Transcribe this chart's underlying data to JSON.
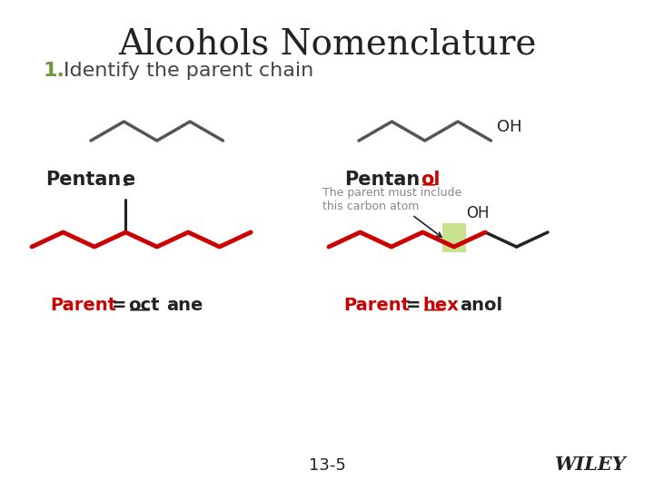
{
  "title": "Alcohols Nomenclature",
  "title_fontsize": 28,
  "title_color": "#222222",
  "subtitle_number": "1.",
  "subtitle_number_color": "#6a9a3a",
  "subtitle_fontsize": 16,
  "subtitle_color": "#444444",
  "bg_color": "#ffffff",
  "page_number": "13-5",
  "wiley_text": "WILEY",
  "red_color": "#cc0000",
  "dark_color": "#222222",
  "gray_color": "#888888",
  "green_box_color": "#b8d96a"
}
